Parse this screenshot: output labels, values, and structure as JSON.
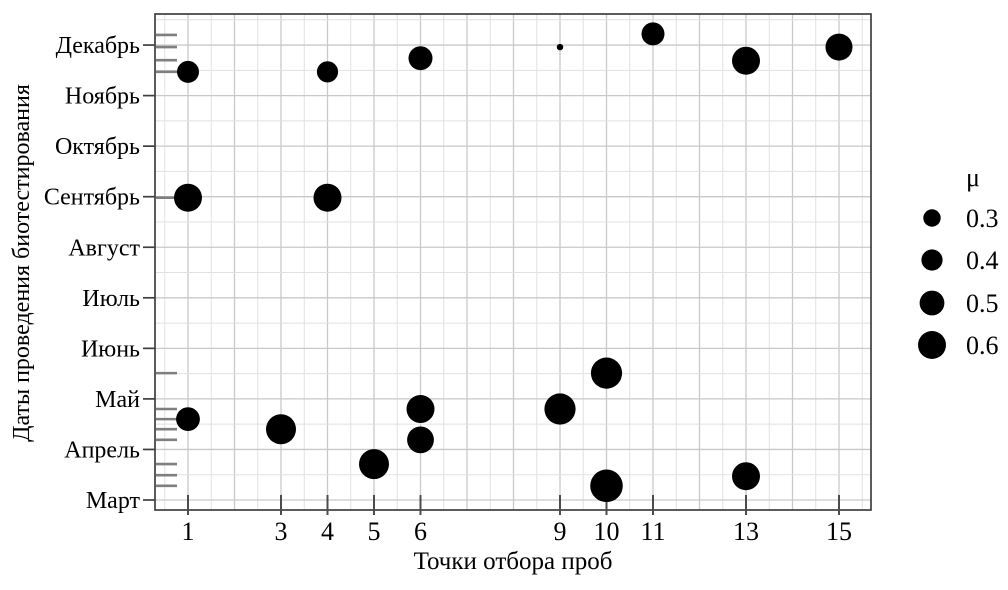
{
  "chart_data": {
    "type": "scatter",
    "title": "",
    "xlabel": "Точки отбора проб",
    "ylabel": "Даты проведения биотестирования",
    "x_ticks": [
      1,
      3,
      4,
      5,
      6,
      9,
      10,
      11,
      13,
      15
    ],
    "x_range": [
      0.3,
      15.7
    ],
    "y_month_labels_top_to_bottom": [
      "Декабрь",
      "Ноябрь",
      "Октябрь",
      "Сентябрь",
      "Август",
      "Июль",
      "Июнь",
      "Май",
      "Апрель",
      "Март"
    ],
    "y_unit": "month_index_from_Март_0_to_Декабрь_9",
    "y_range": [
      -0.2,
      9.6
    ],
    "grid": "major lines at integer x and month y, minor lines at halves",
    "legend": {
      "title": "μ",
      "position": "right",
      "items": [
        {
          "label": "0.3",
          "value": 0.3
        },
        {
          "label": "0.4",
          "value": 0.4
        },
        {
          "label": "0.5",
          "value": 0.5
        },
        {
          "label": "0.6",
          "value": 0.6
        }
      ]
    },
    "size_encoding": "bubble radius encodes μ",
    "points": [
      {
        "x": 1,
        "y_month_index": 8.47,
        "mu": 0.42
      },
      {
        "x": 4,
        "y_month_index": 8.47,
        "mu": 0.4
      },
      {
        "x": 6,
        "y_month_index": 8.74,
        "mu": 0.48
      },
      {
        "x": 9,
        "y_month_index": 8.96,
        "mu": 0.07
      },
      {
        "x": 11,
        "y_month_index": 9.22,
        "mu": 0.45
      },
      {
        "x": 13,
        "y_month_index": 8.69,
        "mu": 0.6
      },
      {
        "x": 15,
        "y_month_index": 8.96,
        "mu": 0.57
      },
      {
        "x": 1,
        "y_month_index": 5.98,
        "mu": 0.6
      },
      {
        "x": 4,
        "y_month_index": 5.98,
        "mu": 0.6
      },
      {
        "x": 1,
        "y_month_index": 1.6,
        "mu": 0.47
      },
      {
        "x": 3,
        "y_month_index": 1.4,
        "mu": 0.66
      },
      {
        "x": 5,
        "y_month_index": 0.71,
        "mu": 0.66
      },
      {
        "x": 6,
        "y_month_index": 1.8,
        "mu": 0.6
      },
      {
        "x": 6,
        "y_month_index": 1.19,
        "mu": 0.56
      },
      {
        "x": 9,
        "y_month_index": 1.8,
        "mu": 0.7
      },
      {
        "x": 10,
        "y_month_index": 2.51,
        "mu": 0.7
      },
      {
        "x": 10,
        "y_month_index": 0.28,
        "mu": 0.75
      },
      {
        "x": 13,
        "y_month_index": 0.47,
        "mu": 0.6
      }
    ],
    "date_rug_y_month_index": [
      9.2,
      8.96,
      8.7,
      8.47,
      5.98,
      2.51,
      1.8,
      1.6,
      1.4,
      1.19,
      0.71,
      0.49,
      0.28
    ]
  }
}
